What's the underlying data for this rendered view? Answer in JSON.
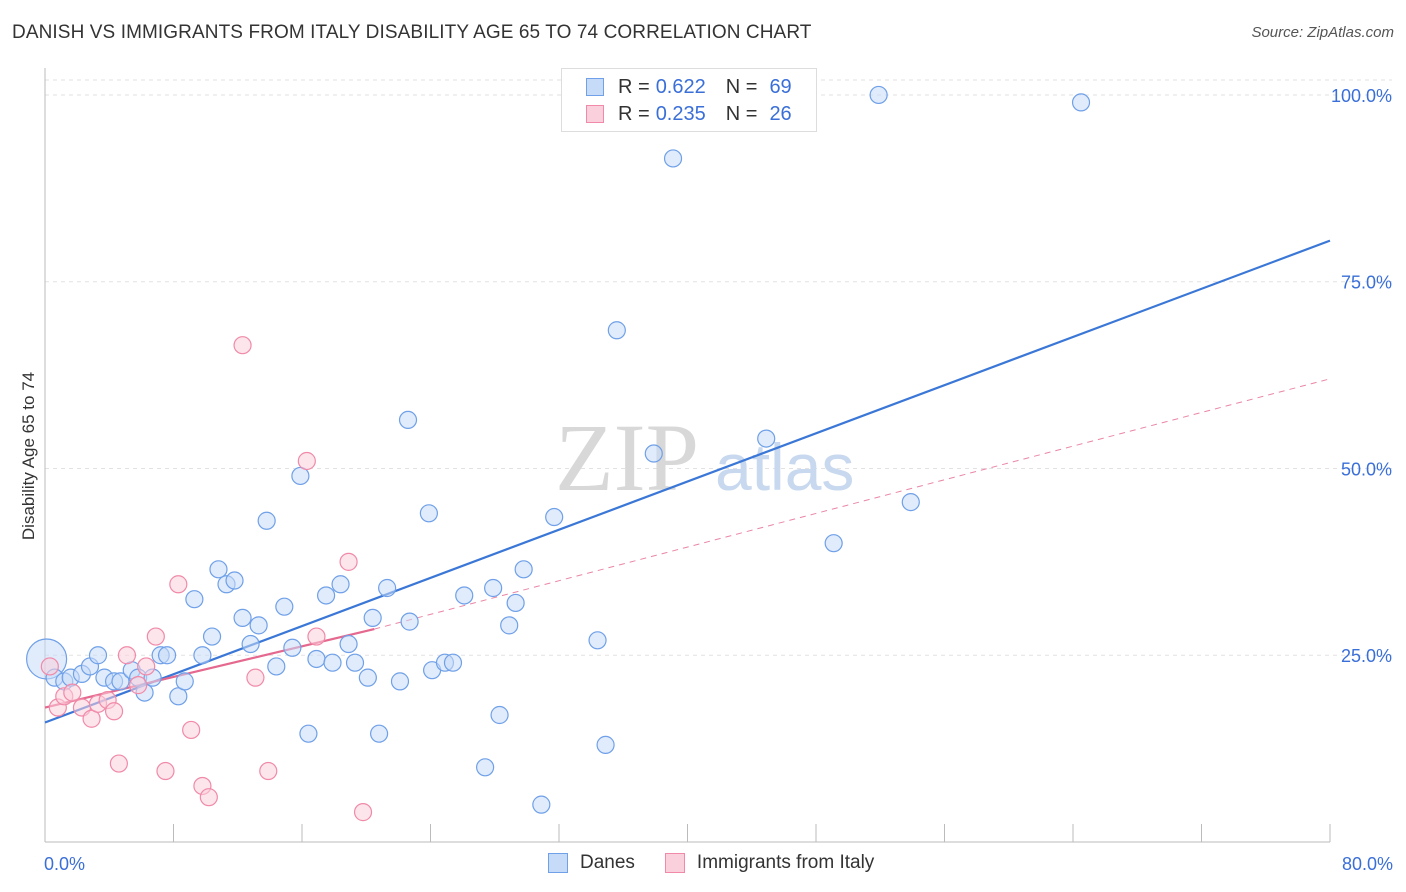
{
  "chart_data": {
    "type": "scatter",
    "title": "DANISH VS IMMIGRANTS FROM ITALY DISABILITY AGE 65 TO 74 CORRELATION CHART",
    "source": "Source: ZipAtlas.com",
    "ylabel": "Disability Age 65 to 74",
    "xlabel": "",
    "xlim": [
      0,
      80
    ],
    "ylim": [
      0,
      102
    ],
    "x_tick_labels": [
      "0.0%",
      "80.0%"
    ],
    "y_tick_labels": [
      "25.0%",
      "50.0%",
      "75.0%",
      "100.0%"
    ],
    "y_ticks": [
      25,
      50,
      75,
      100
    ],
    "watermark": {
      "zip": "ZIP",
      "atlas": "atlas"
    },
    "legend": {
      "r_label": "R =",
      "n_label": "N =",
      "entries": [
        {
          "r": "0.622",
          "n": "69",
          "color": "#6fa0e8"
        },
        {
          "r": "0.235",
          "n": "26",
          "color": "#f08aa8"
        }
      ]
    },
    "series": [
      {
        "name": "Danes",
        "color": "#6fa0e8",
        "line_color": "#3a77d6",
        "trend": {
          "x1": 0,
          "y1": 16,
          "x2": 80,
          "y2": 80.5
        },
        "points": [
          [
            0.1,
            24.5,
            "big"
          ],
          [
            0.6,
            22
          ],
          [
            1.2,
            21.5
          ],
          [
            1.6,
            22
          ],
          [
            2.3,
            22.5
          ],
          [
            2.8,
            23.5
          ],
          [
            3.3,
            25
          ],
          [
            3.7,
            22
          ],
          [
            4.3,
            21.5
          ],
          [
            4.7,
            21.5
          ],
          [
            5.4,
            23
          ],
          [
            5.8,
            22
          ],
          [
            6.2,
            20
          ],
          [
            6.7,
            22
          ],
          [
            7.2,
            25
          ],
          [
            7.6,
            25
          ],
          [
            8.3,
            19.5
          ],
          [
            8.7,
            21.5
          ],
          [
            9.3,
            32.5
          ],
          [
            9.8,
            25
          ],
          [
            10.4,
            27.5
          ],
          [
            10.8,
            36.5
          ],
          [
            11.3,
            34.5
          ],
          [
            11.8,
            35
          ],
          [
            12.3,
            30
          ],
          [
            12.8,
            26.5
          ],
          [
            13.3,
            29
          ],
          [
            13.8,
            43
          ],
          [
            14.4,
            23.5
          ],
          [
            14.9,
            31.5
          ],
          [
            15.4,
            26
          ],
          [
            15.9,
            49
          ],
          [
            16.4,
            14.5
          ],
          [
            16.9,
            24.5
          ],
          [
            17.5,
            33
          ],
          [
            17.9,
            24
          ],
          [
            18.4,
            34.5
          ],
          [
            18.9,
            26.5
          ],
          [
            19.3,
            24
          ],
          [
            20.1,
            22
          ],
          [
            20.4,
            30
          ],
          [
            20.8,
            14.5
          ],
          [
            21.3,
            34
          ],
          [
            22.1,
            21.5
          ],
          [
            22.6,
            56.5
          ],
          [
            22.7,
            29.5
          ],
          [
            23.9,
            44
          ],
          [
            24.1,
            23
          ],
          [
            24.9,
            24
          ],
          [
            25.4,
            24
          ],
          [
            26.1,
            33
          ],
          [
            27.4,
            10
          ],
          [
            27.9,
            34
          ],
          [
            28.3,
            17
          ],
          [
            28.9,
            29
          ],
          [
            29.3,
            32
          ],
          [
            29.8,
            36.5
          ],
          [
            30.9,
            5
          ],
          [
            31.7,
            43.5
          ],
          [
            34.4,
            27
          ],
          [
            34.9,
            13
          ],
          [
            35.6,
            68.5
          ],
          [
            37.9,
            52
          ],
          [
            39.1,
            91.5
          ],
          [
            44.9,
            54
          ],
          [
            49.1,
            40
          ],
          [
            51.9,
            100
          ],
          [
            53.9,
            45.5
          ],
          [
            64.5,
            99
          ]
        ]
      },
      {
        "name": "Immigrants from Italy",
        "color": "#f08aa8",
        "line_color": "#e5688f",
        "trend": {
          "x1": 0,
          "y1": 18,
          "x2": 20.5,
          "y2": 28.5
        },
        "trend_extended": {
          "x1": 20.5,
          "y1": 28.5,
          "x2": 80,
          "y2": 62
        },
        "points": [
          [
            0.3,
            23.5
          ],
          [
            0.8,
            18
          ],
          [
            1.2,
            19.5
          ],
          [
            1.7,
            20
          ],
          [
            2.3,
            18
          ],
          [
            2.9,
            16.5
          ],
          [
            3.3,
            18.5
          ],
          [
            3.9,
            19
          ],
          [
            4.3,
            17.5
          ],
          [
            4.6,
            10.5
          ],
          [
            5.1,
            25
          ],
          [
            5.8,
            21
          ],
          [
            6.3,
            23.5
          ],
          [
            6.9,
            27.5
          ],
          [
            7.5,
            9.5
          ],
          [
            8.3,
            34.5
          ],
          [
            9.1,
            15
          ],
          [
            9.8,
            7.5
          ],
          [
            10.2,
            6
          ],
          [
            12.3,
            66.5
          ],
          [
            13.1,
            22
          ],
          [
            13.9,
            9.5
          ],
          [
            16.3,
            51
          ],
          [
            16.9,
            27.5
          ],
          [
            18.9,
            37.5
          ],
          [
            19.8,
            4
          ]
        ]
      }
    ]
  }
}
